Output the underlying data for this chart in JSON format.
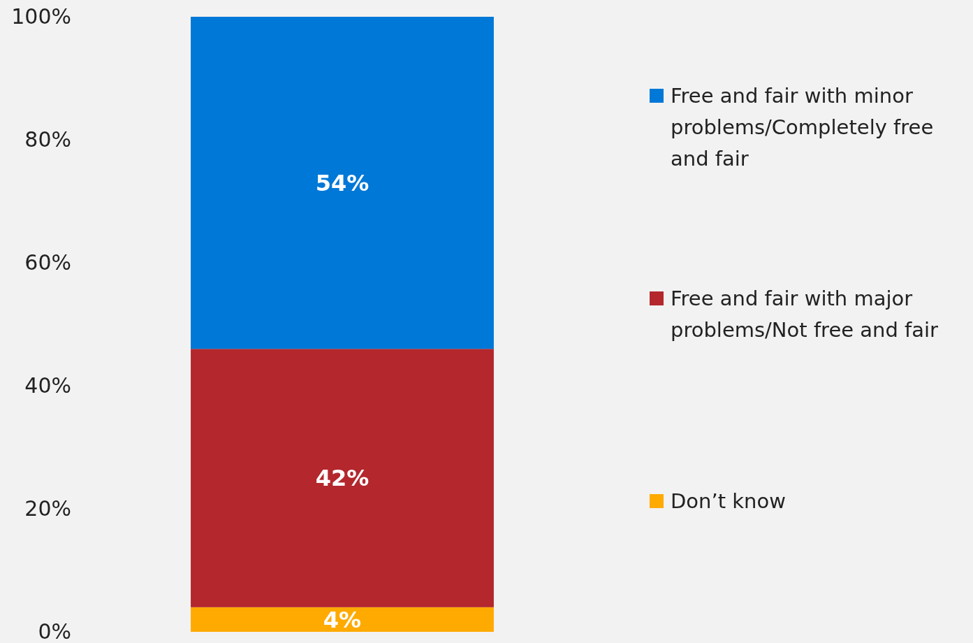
{
  "chart_data": {
    "type": "bar",
    "stacked": true,
    "categories": [
      null
    ],
    "series": [
      {
        "name": "Don’t know",
        "color": "#ffaa00",
        "values": [
          4
        ],
        "value_labels": [
          "4%"
        ]
      },
      {
        "name": "Free and fair with major problems/Not free and fair",
        "color": "#b3272d",
        "values": [
          42
        ],
        "value_labels": [
          "42%"
        ]
      },
      {
        "name": "Free and fair with minor problems/Completely free and fair",
        "color": "#0078d7",
        "values": [
          54
        ],
        "value_labels": [
          "54%"
        ]
      }
    ],
    "ylim": [
      0,
      100
    ],
    "yticks": [
      {
        "value": 0,
        "label": "0%"
      },
      {
        "value": 20,
        "label": "20%"
      },
      {
        "value": 40,
        "label": "40%"
      },
      {
        "value": 60,
        "label": "60%"
      },
      {
        "value": 80,
        "label": "80%"
      },
      {
        "value": 100,
        "label": "100%"
      }
    ],
    "tick_labels": "y",
    "legend": "right",
    "grid": false
  }
}
